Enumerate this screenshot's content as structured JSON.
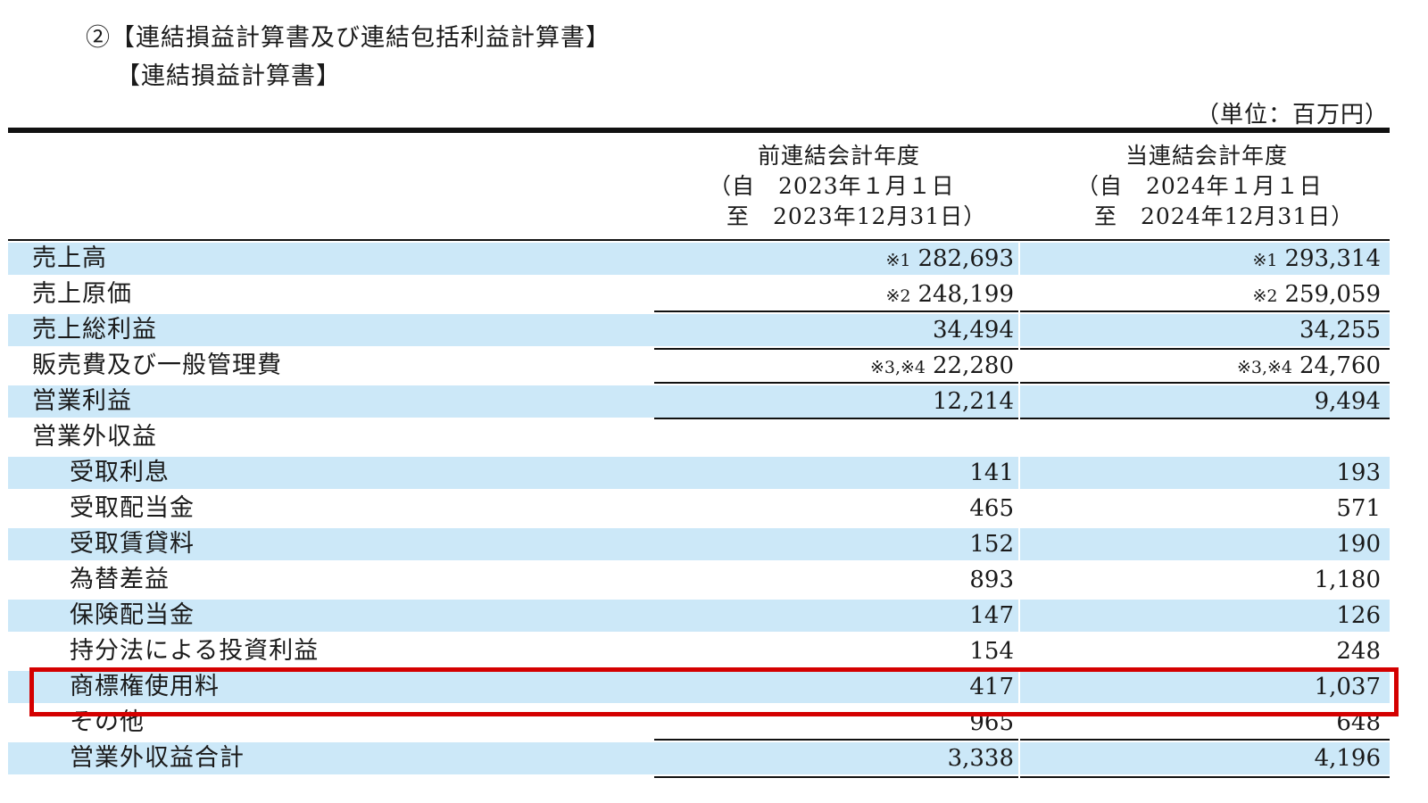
{
  "headings": {
    "title": "②【連結損益計算書及び連結包括利益計算書】",
    "subtitle": "【連結損益計算書】",
    "unit": "（単位：百万円）"
  },
  "columns": {
    "prev": {
      "title": "前連結会計年度",
      "from": "（自　2023年１月１日",
      "to": "至　2023年12月31日）"
    },
    "curr": {
      "title": "当連結会計年度",
      "from": "（自　2024年１月１日",
      "to": "至　2024年12月31日）"
    }
  },
  "rows": [
    {
      "label": "売上高",
      "prev_note": "※1",
      "prev": "282,693",
      "curr_note": "※1",
      "curr": "293,314"
    },
    {
      "label": "売上原価",
      "prev_note": "※2",
      "prev": "248,199",
      "curr_note": "※2",
      "curr": "259,059"
    },
    {
      "label": "売上総利益",
      "prev_note": "",
      "prev": "34,494",
      "curr_note": "",
      "curr": "34,255"
    },
    {
      "label": "販売費及び一般管理費",
      "prev_note": "※3,※4",
      "prev": "22,280",
      "curr_note": "※3,※4",
      "curr": "24,760"
    },
    {
      "label": "営業利益",
      "prev_note": "",
      "prev": "12,214",
      "curr_note": "",
      "curr": "9,494"
    },
    {
      "label": "営業外収益",
      "prev_note": "",
      "prev": "",
      "curr_note": "",
      "curr": ""
    },
    {
      "label": "受取利息",
      "prev_note": "",
      "prev": "141",
      "curr_note": "",
      "curr": "193"
    },
    {
      "label": "受取配当金",
      "prev_note": "",
      "prev": "465",
      "curr_note": "",
      "curr": "571"
    },
    {
      "label": "受取賃貸料",
      "prev_note": "",
      "prev": "152",
      "curr_note": "",
      "curr": "190"
    },
    {
      "label": "為替差益",
      "prev_note": "",
      "prev": "893",
      "curr_note": "",
      "curr": "1,180"
    },
    {
      "label": "保険配当金",
      "prev_note": "",
      "prev": "147",
      "curr_note": "",
      "curr": "126"
    },
    {
      "label": "持分法による投資利益",
      "prev_note": "",
      "prev": "154",
      "curr_note": "",
      "curr": "248"
    },
    {
      "label": "商標権使用料",
      "prev_note": "",
      "prev": "417",
      "curr_note": "",
      "curr": "1,037"
    },
    {
      "label": "その他",
      "prev_note": "",
      "prev": "965",
      "curr_note": "",
      "curr": "648"
    },
    {
      "label": "営業外収益合計",
      "prev_note": "",
      "prev": "3,338",
      "curr_note": "",
      "curr": "4,196"
    }
  ],
  "highlight": {
    "row_label": "商標権使用料",
    "color": "#d40000"
  },
  "colors": {
    "shade": "#cce8f8",
    "rule": "#111111"
  }
}
